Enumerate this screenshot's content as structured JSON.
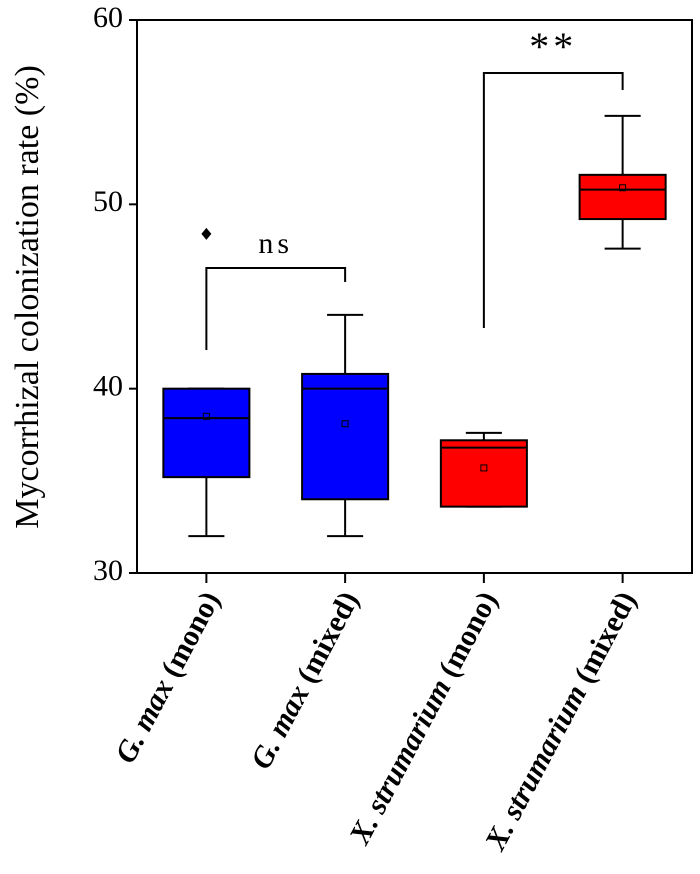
{
  "chart_data": {
    "type": "box",
    "ylabel": "Mycorrhizal colonization rate (%)",
    "categories": [
      "G. max (mono)",
      "G. max (mixed)",
      "X. strumarium (mono)",
      "X. strumarium (mixed)"
    ],
    "series": [
      {
        "colors": [
          "#0000ff",
          "#0000ff",
          "#ff0000",
          "#ff0000"
        ],
        "min": [
          32,
          32,
          33.6,
          47.6
        ],
        "q1": [
          35.2,
          34,
          33.6,
          49.2
        ],
        "median": [
          38.4,
          40,
          36.8,
          50.8
        ],
        "q3": [
          40,
          40.8,
          37.2,
          51.6
        ],
        "max": [
          40,
          44,
          37.6,
          54.8
        ],
        "mean": [
          38.5,
          38.1,
          35.7,
          50.9
        ],
        "outliers": [
          [
            48.4
          ],
          [],
          [],
          []
        ]
      }
    ],
    "annotations": [
      {
        "text": "ns",
        "from": 0,
        "to": 1
      },
      {
        "text": "**",
        "from": 2,
        "to": 3
      }
    ],
    "ylim": [
      30,
      60
    ],
    "yticks": [
      30,
      40,
      50,
      60
    ]
  }
}
